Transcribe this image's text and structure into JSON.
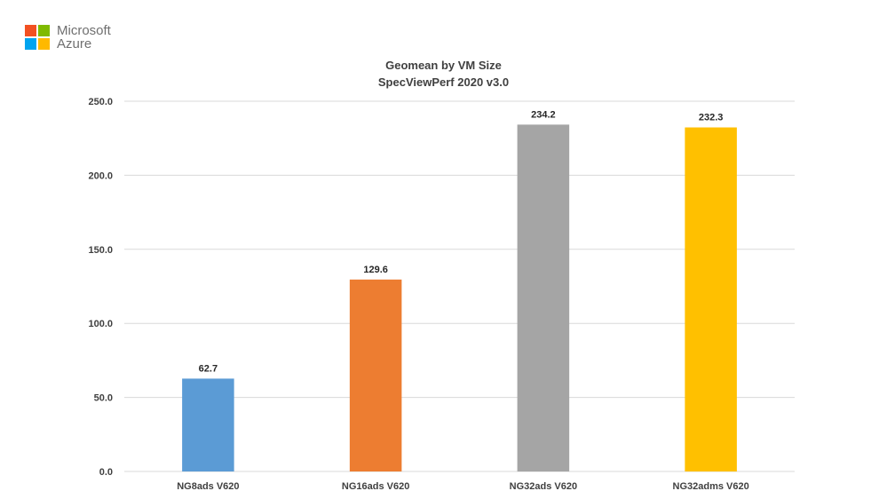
{
  "logo": {
    "line1": "Microsoft",
    "line2": "Azure",
    "colors": [
      "#f25022",
      "#7fba00",
      "#00a4ef",
      "#ffb900"
    ]
  },
  "chart_data": {
    "type": "bar",
    "title": "Geomean by VM Size",
    "subtitle": "SpecViewPerf 2020 v3.0",
    "categories": [
      "NG8ads V620",
      "NG16ads V620",
      "NG32ads V620",
      "NG32adms V620"
    ],
    "values": [
      62.7,
      129.6,
      234.2,
      232.3
    ],
    "data_labels": [
      "62.7",
      "129.6",
      "234.2",
      "232.3"
    ],
    "colors": [
      "#5b9bd5",
      "#ed7d31",
      "#a5a5a5",
      "#ffc000"
    ],
    "xlabel": "",
    "ylabel": "",
    "ylim": [
      0,
      250
    ],
    "yticks": [
      "0.0",
      "50.0",
      "100.0",
      "150.0",
      "200.0",
      "250.0"
    ],
    "grid": true,
    "gridline_color": "#d9d9d9",
    "legend": "none"
  }
}
